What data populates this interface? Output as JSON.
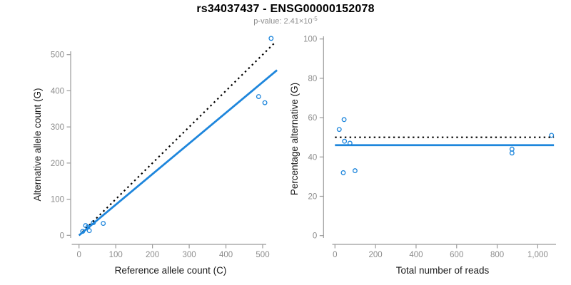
{
  "title": "rs34037437 - ENSG00000152078",
  "subtitle": {
    "prefix": "p-value: 2.41×10",
    "exponent": "-5"
  },
  "colors": {
    "accent_blue": "#1e86dc",
    "dotted_black": "#000000",
    "axis_gray": "#9b9b9b",
    "tick_label_gray": "#8c8c8c",
    "axis_title_color": "#1a1a1a",
    "title_color": "#000000",
    "subtitle_color": "#8c8c8c",
    "background": "#ffffff"
  },
  "chart_data": [
    {
      "name": "allele-counts",
      "type": "scatter",
      "xlabel": "Reference allele count (C)",
      "ylabel": "Alternative allele count (G)",
      "xlim": [
        0,
        540
      ],
      "ylim": [
        0,
        550
      ],
      "grid": false,
      "xticks": [
        0,
        100,
        200,
        300,
        400,
        500
      ],
      "xtick_labels": [
        "0",
        "100",
        "200",
        "300",
        "400",
        "500"
      ],
      "yticks": [
        0,
        100,
        200,
        300,
        400,
        500
      ],
      "ytick_labels": [
        "0",
        "100",
        "200",
        "300",
        "400",
        "500"
      ],
      "points": [
        [
          10,
          11
        ],
        [
          18,
          27
        ],
        [
          24,
          23
        ],
        [
          28,
          13
        ],
        [
          39,
          35
        ],
        [
          66,
          33
        ],
        [
          489,
          384
        ],
        [
          506,
          367
        ],
        [
          523,
          545
        ]
      ],
      "lines": [
        {
          "name": "identity-dotted-line",
          "style": "dotted",
          "color": "#000000",
          "x1": 0,
          "y1": 0,
          "x2": 536,
          "y2": 536
        },
        {
          "name": "regression-blue-line",
          "style": "solid",
          "color": "#1e86dc",
          "x1": 0,
          "y1": 0,
          "x2": 539,
          "y2": 457
        }
      ]
    },
    {
      "name": "percentage-alternative",
      "type": "scatter",
      "xlabel": "Total number of reads",
      "ylabel": "Percentage alternative (G)",
      "xlim": [
        0,
        1080
      ],
      "ylim": [
        0,
        100
      ],
      "grid": false,
      "xticks": [
        0,
        200,
        400,
        600,
        800,
        1000
      ],
      "xtick_labels": [
        "0",
        "200",
        "400",
        "600",
        "800",
        "1,000"
      ],
      "yticks": [
        0,
        20,
        40,
        60,
        80,
        100
      ],
      "ytick_labels": [
        "0",
        "20",
        "40",
        "60",
        "80",
        "100"
      ],
      "points": [
        [
          21,
          54
        ],
        [
          45,
          59
        ],
        [
          41,
          32
        ],
        [
          47,
          48
        ],
        [
          74,
          47
        ],
        [
          99,
          33
        ],
        [
          873,
          44
        ],
        [
          873,
          42
        ],
        [
          1068,
          51
        ]
      ],
      "lines": [
        {
          "name": "expected-50pct-dotted-line",
          "style": "dotted",
          "color": "#000000",
          "x1": 0,
          "y1": 50,
          "x2": 1080,
          "y2": 50
        },
        {
          "name": "mean-percentage-blue-line",
          "style": "solid",
          "color": "#1e86dc",
          "x1": 0,
          "y1": 46,
          "x2": 1080,
          "y2": 46
        }
      ]
    }
  ]
}
